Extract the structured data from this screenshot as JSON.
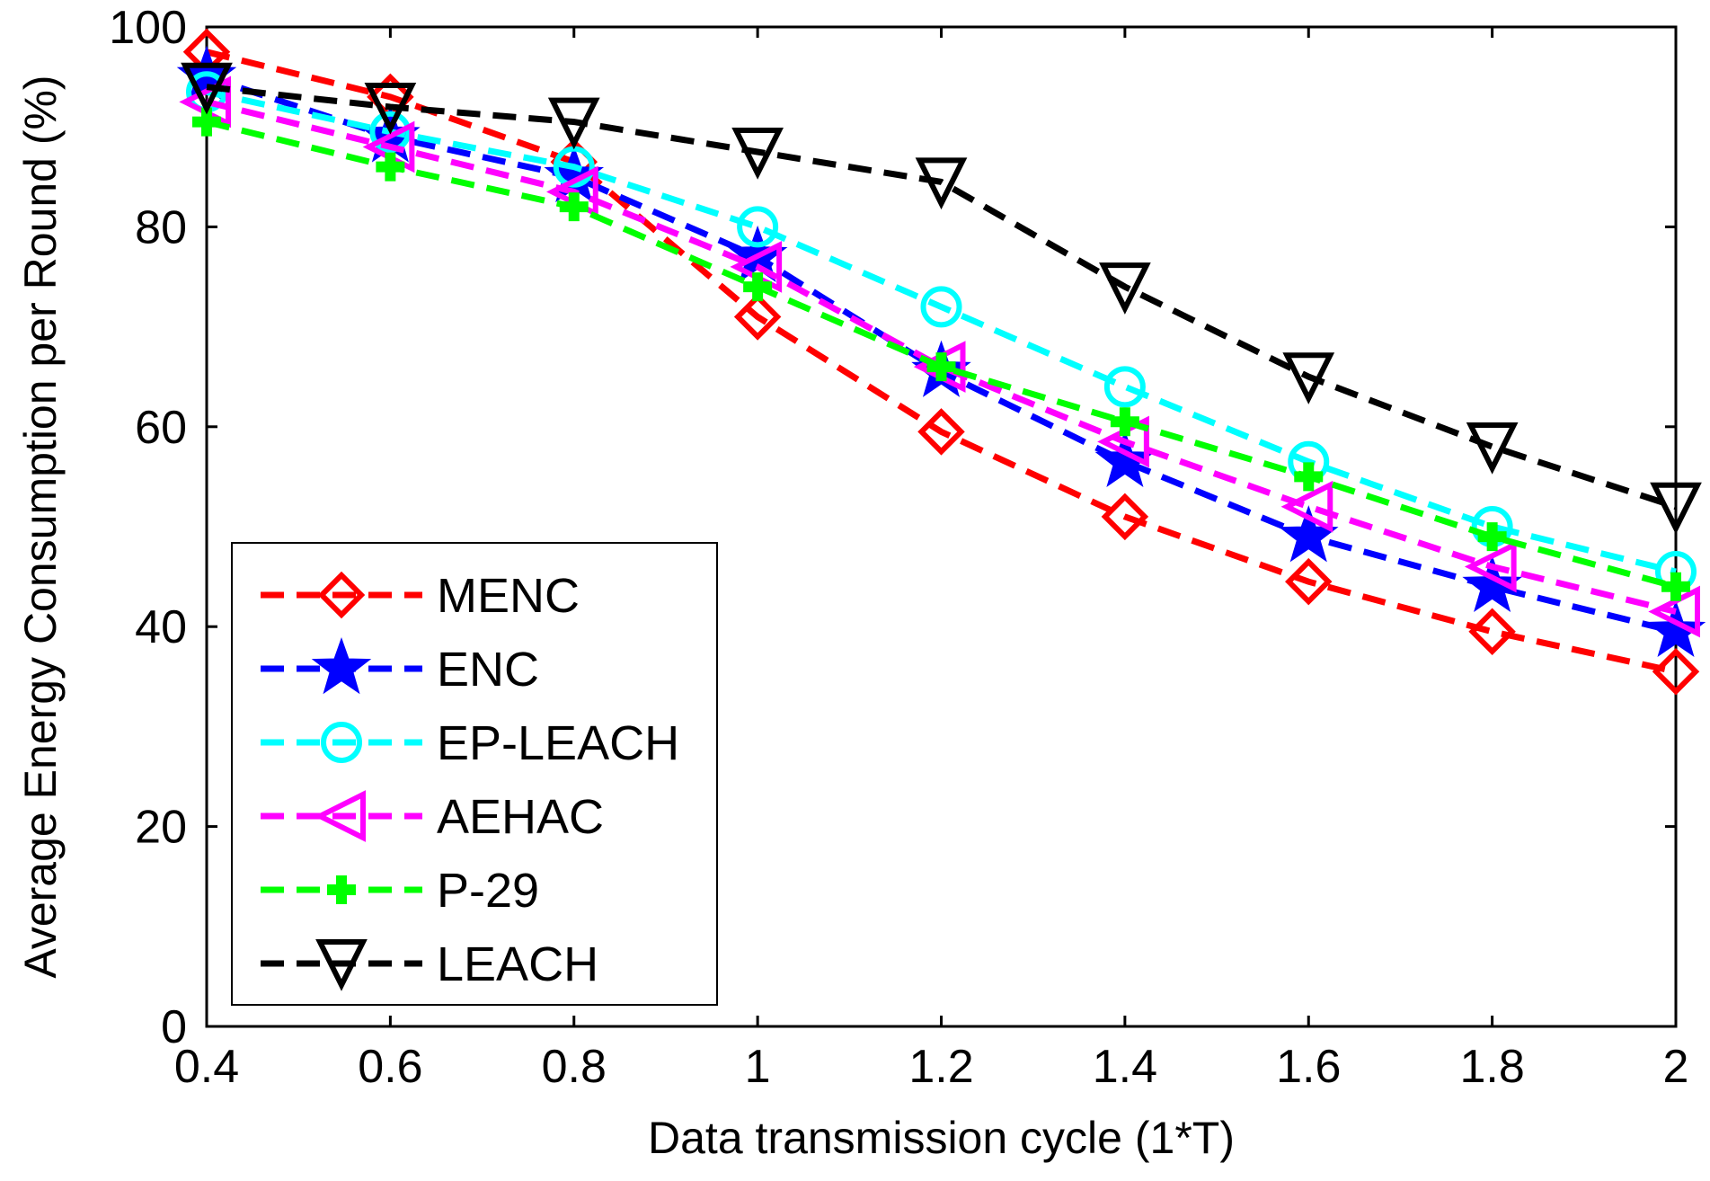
{
  "chart_data": {
    "type": "line",
    "title": "",
    "xlabel": "Data transmission cycle (1*T)",
    "ylabel": "Average Energy Consumption per Round (%)",
    "xlim": [
      0.4,
      2.0
    ],
    "ylim": [
      0,
      100
    ],
    "x": [
      0.4,
      0.6,
      0.8,
      1.0,
      1.2,
      1.4,
      1.6,
      1.8,
      2.0
    ],
    "x_tick_labels": [
      "0.4",
      "0.6",
      "0.8",
      "1",
      "1.2",
      "1.4",
      "1.6",
      "1.8",
      "2"
    ],
    "y_ticks": [
      0,
      20,
      40,
      60,
      80,
      100
    ],
    "y_tick_labels": [
      "0",
      "20",
      "40",
      "60",
      "80",
      "100"
    ],
    "grid": false,
    "legend_position": "bottom-left",
    "series": [
      {
        "name": "MENC",
        "color": "#ff0000",
        "marker": "diamond",
        "values": [
          97.5,
          93,
          86.5,
          71,
          59.5,
          51,
          44.5,
          39.5,
          35.5
        ]
      },
      {
        "name": "ENC",
        "color": "#0000ff",
        "marker": "star",
        "values": [
          95,
          89,
          85,
          77,
          65.5,
          56.5,
          49,
          44,
          39.5
        ]
      },
      {
        "name": "EP-LEACH",
        "color": "#00ffff",
        "marker": "circle",
        "values": [
          93.5,
          89.5,
          86,
          80,
          72,
          64,
          56.5,
          50,
          45.5
        ]
      },
      {
        "name": "AEHAC",
        "color": "#ff00ff",
        "marker": "triangle-left",
        "values": [
          92.5,
          88,
          83.5,
          76,
          66,
          58.5,
          52,
          46,
          41.5
        ]
      },
      {
        "name": "P-29",
        "color": "#00ff00",
        "marker": "plus",
        "values": [
          90.5,
          86,
          82,
          74,
          66,
          60.5,
          55,
          49,
          44
        ]
      },
      {
        "name": "LEACH",
        "color": "#000000",
        "marker": "triangle-down",
        "values": [
          94,
          92,
          90.5,
          87.5,
          84.5,
          74,
          65,
          58,
          52
        ]
      }
    ]
  }
}
